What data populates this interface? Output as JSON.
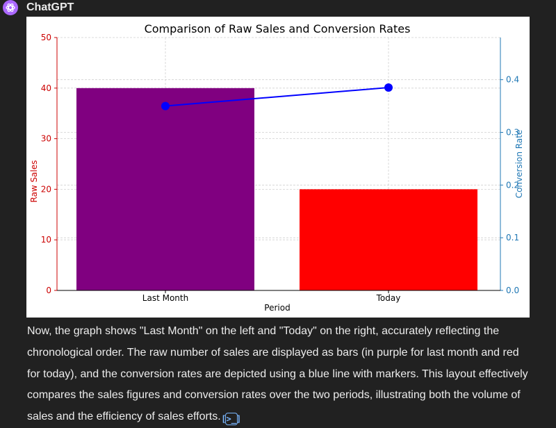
{
  "header": {
    "sender": "ChatGPT",
    "avatar_icon": "openai-logo-icon",
    "avatar_color": "#ab68ff"
  },
  "message": {
    "text": "Now, the graph shows \"Last Month\" on the left and \"Today\" on the right, accurately reflecting the chronological order. The raw number of sales are displayed as bars (in purple for last month and red for today), and the conversion rates are depicted using a blue line with markers. This layout effectively compares the sales figures and conversion rates over the two periods, illustrating both the volume of sales and the efficiency of sales efforts.",
    "code_icon": "code-interpreter-icon",
    "code_glyph": "[>_]"
  },
  "chart_data": {
    "type": "bar",
    "title": "Comparison of Raw Sales and Conversion Rates",
    "xlabel": "Period",
    "ylabel": "Raw Sales",
    "y2label": "Conversion Rate",
    "categories": [
      "Last Month",
      "Today"
    ],
    "series": [
      {
        "type": "bar",
        "values": [
          40,
          20
        ],
        "colors": [
          "#800080",
          "#ff0000"
        ],
        "axis": "left"
      },
      {
        "type": "line",
        "values": [
          0.35,
          0.385
        ],
        "color": "#0000ff",
        "markers": true,
        "axis": "right"
      }
    ],
    "ylim": [
      0,
      50
    ],
    "yticks": [
      "0",
      "10",
      "20",
      "30",
      "40",
      "50"
    ],
    "y2lim": [
      0,
      0.48
    ],
    "y2ticks": [
      "0.0",
      "0.1",
      "0.2",
      "0.3",
      "0.4"
    ],
    "y2tick_values": [
      0,
      0.1,
      0.2,
      0.3,
      0.4
    ],
    "ylabel_color": "#cc0000",
    "y2label_color": "#1f77b4",
    "grid": true
  }
}
